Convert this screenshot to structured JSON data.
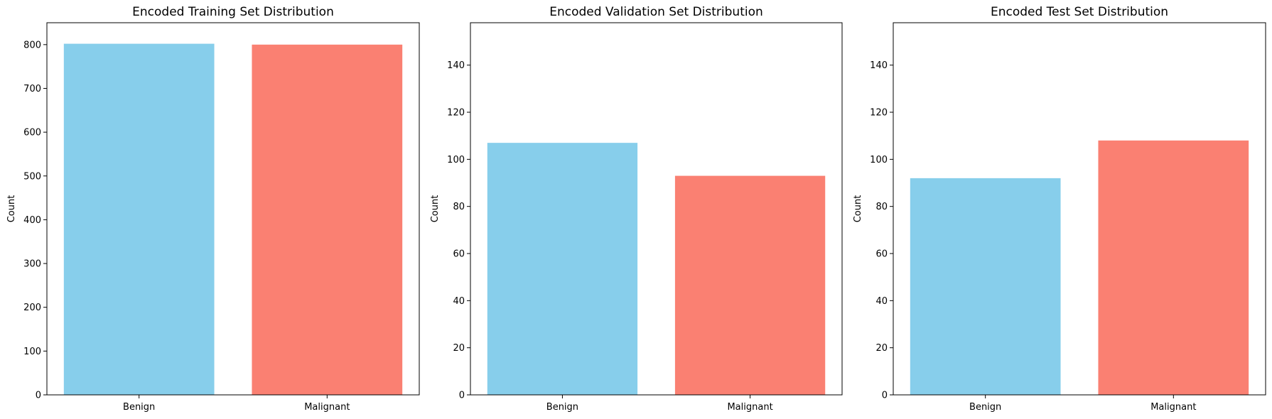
{
  "chart_data": [
    {
      "type": "bar",
      "title": "Encoded Training Set Distribution",
      "categories": [
        "Benign",
        "Malignant"
      ],
      "values": [
        802,
        800
      ],
      "colors": [
        "#87ceeb",
        "#fa8072"
      ],
      "xlabel": "",
      "ylabel": "Count",
      "ylim": [
        0,
        850
      ],
      "yticks": [
        0,
        100,
        200,
        300,
        400,
        500,
        600,
        700,
        800
      ],
      "grid": false
    },
    {
      "type": "bar",
      "title": "Encoded Validation Set Distribution",
      "categories": [
        "Benign",
        "Malignant"
      ],
      "values": [
        107,
        93
      ],
      "colors": [
        "#87ceeb",
        "#fa8072"
      ],
      "xlabel": "",
      "ylabel": "Count",
      "ylim": [
        0,
        158
      ],
      "yticks": [
        0,
        20,
        40,
        60,
        80,
        100,
        120,
        140
      ],
      "grid": false
    },
    {
      "type": "bar",
      "title": "Encoded Test Set Distribution",
      "categories": [
        "Benign",
        "Malignant"
      ],
      "values": [
        92,
        108
      ],
      "colors": [
        "#87ceeb",
        "#fa8072"
      ],
      "xlabel": "",
      "ylabel": "Count",
      "ylim": [
        0,
        158
      ],
      "yticks": [
        0,
        20,
        40,
        60,
        80,
        100,
        120,
        140
      ],
      "grid": false
    }
  ]
}
